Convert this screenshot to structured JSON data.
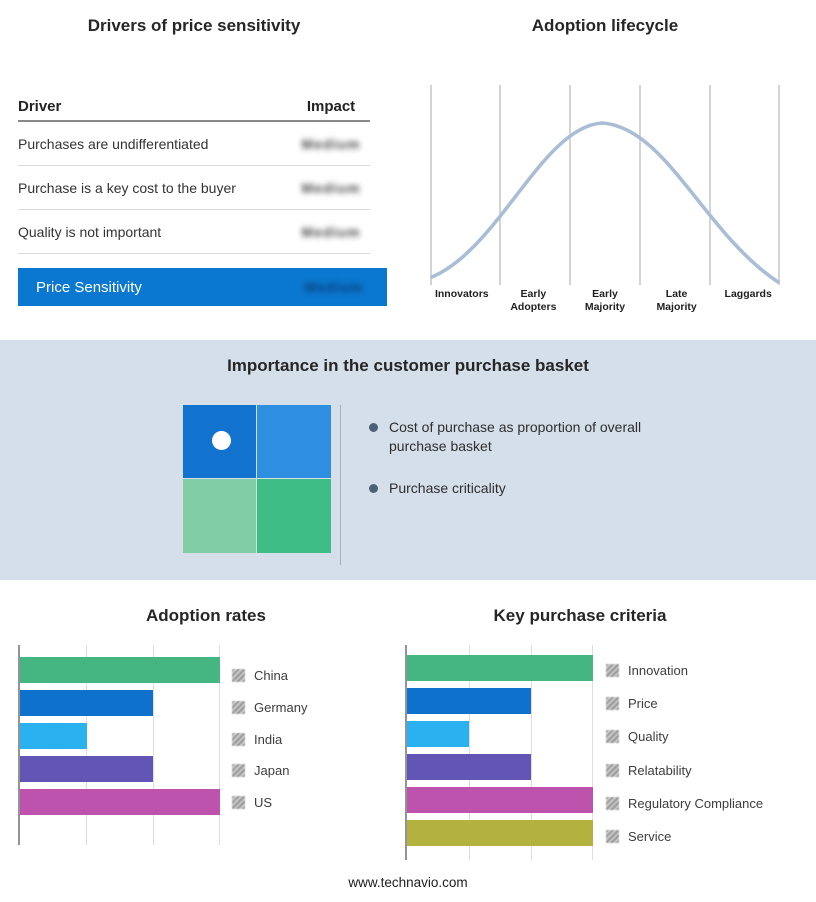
{
  "price_sensitivity": {
    "title": "Drivers of price sensitivity",
    "col_driver": "Driver",
    "col_impact": "Impact",
    "rows": [
      {
        "driver": "Purchases are undifferentiated",
        "impact": "Medium"
      },
      {
        "driver": "Purchase is a key cost to the buyer",
        "impact": "Medium"
      },
      {
        "driver": "Quality is not important",
        "impact": "Medium"
      }
    ],
    "summary": {
      "label": "Price Sensitivity",
      "impact": "Medium"
    },
    "highlight_color": "#0a78d0"
  },
  "purchase_basket": {
    "title": "Importance in the customer purchase basket",
    "bullets": [
      "Cost of purchase as proportion of overall purchase basket",
      "Purchase criticality"
    ],
    "quadrant_colors": [
      "#1173cd",
      "#2e8fe0",
      "#80cda5",
      "#3fbd87"
    ],
    "band_color": "#d5dfe9"
  },
  "footer": {
    "url": "www.technavio.com"
  },
  "chart_data": [
    {
      "type": "line",
      "title": "Adoption lifecycle",
      "x_labels": [
        "Innovators",
        "Early Adopters",
        "Early Majority",
        "Late Majority",
        "Laggards"
      ],
      "curve_shape": "bell curve peaking at Early Majority",
      "curve_color": "#a9bdd5",
      "grid": true,
      "legend_position": "none"
    },
    {
      "type": "bar",
      "orientation": "horizontal",
      "title": "Adoption rates",
      "categories": [
        "China",
        "Germany",
        "India",
        "Japan",
        "US"
      ],
      "values": [
        3,
        2,
        1,
        2,
        3
      ],
      "xlim": [
        0,
        3
      ],
      "colors": [
        "#45b582",
        "#0e72cc",
        "#29b2ef",
        "#6355b5",
        "#bd53ad"
      ],
      "grid": true,
      "legend_position": "right"
    },
    {
      "type": "bar",
      "orientation": "horizontal",
      "title": "Key purchase criteria",
      "categories": [
        "Innovation",
        "Price",
        "Quality",
        "Relatability",
        "Regulatory Compliance",
        "Service"
      ],
      "values": [
        3,
        2,
        1,
        2,
        3,
        3
      ],
      "xlim": [
        0,
        3
      ],
      "colors": [
        "#45b582",
        "#0e72cc",
        "#29b2ef",
        "#6355b5",
        "#bd53ad",
        "#b3b23e"
      ],
      "grid": true,
      "legend_position": "right"
    }
  ]
}
